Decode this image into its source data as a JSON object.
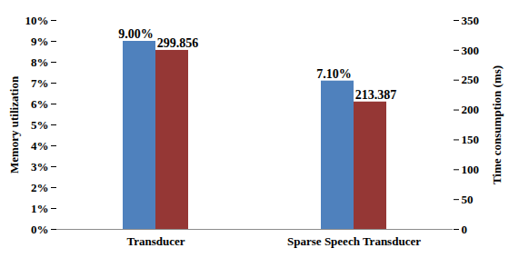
{
  "chart_data": {
    "type": "bar",
    "categories": [
      "Transducer",
      "Sparse Speech Transducer"
    ],
    "ylabel": "Memory utilization",
    "y2label": "Time consumption (ms)",
    "series": [
      {
        "color": "#4f81bd",
        "values": [
          9.0,
          7.1
        ],
        "value_labels": [
          "9.00%",
          "7.10%"
        ]
      },
      {
        "color": "#953735",
        "values": [
          299.856,
          213.387
        ],
        "axis": "y2"
      }
    ],
    "ylim": [
      0,
      10
    ],
    "yticks": [
      {
        "value": 0,
        "label": "0%"
      },
      {
        "value": 1,
        "label": "1%"
      },
      {
        "value": 2,
        "label": "2%"
      },
      {
        "value": 3,
        "label": "3%"
      },
      {
        "value": 4,
        "label": "4%"
      },
      {
        "value": 5,
        "label": "5%"
      },
      {
        "value": 6,
        "label": "6%"
      },
      {
        "value": 7,
        "label": "7%"
      },
      {
        "value": 8,
        "label": "8%"
      },
      {
        "value": 9,
        "label": "9%"
      },
      {
        "value": 10,
        "label": "10%"
      }
    ],
    "y2lim": [
      0,
      350
    ],
    "y2ticks": [
      0,
      50,
      100,
      150,
      200,
      250,
      300,
      350
    ],
    "data_labels": true,
    "grid": false
  }
}
